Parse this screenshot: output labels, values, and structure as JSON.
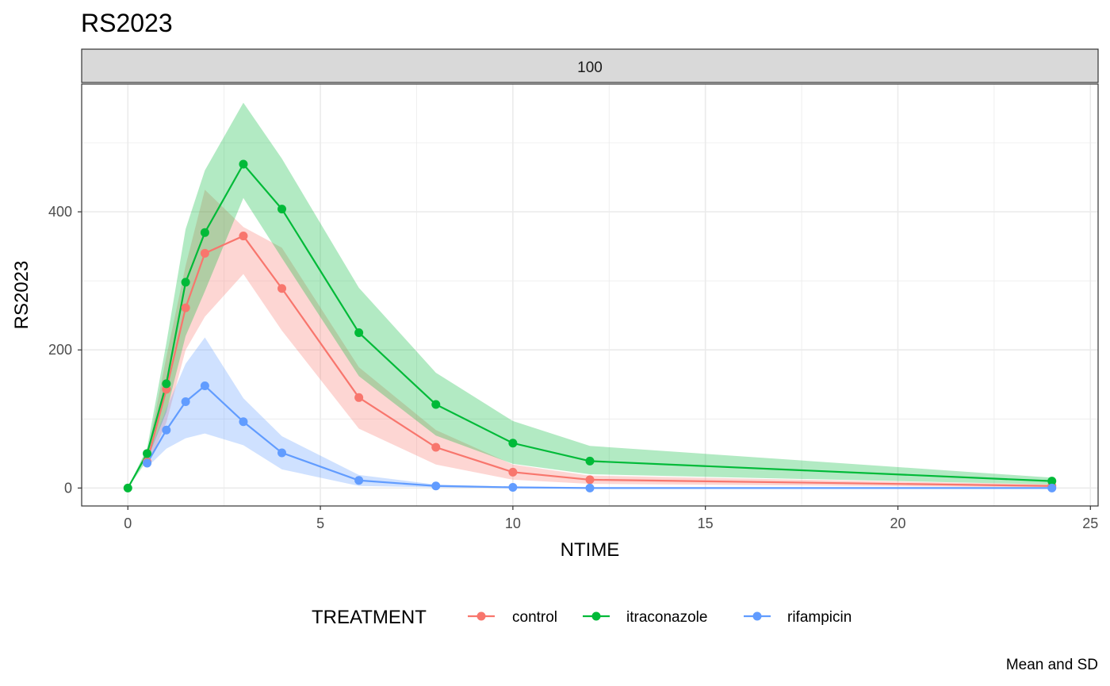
{
  "chart_data": {
    "type": "line",
    "title": "RS2023",
    "facet_label": "100",
    "xlabel": "NTIME",
    "ylabel": "RS2023",
    "caption": "Mean and SD",
    "legend_title": "TREATMENT",
    "legend_position": "bottom",
    "grid": true,
    "xlim": [
      -1.2,
      25.2
    ],
    "ylim": [
      -26,
      585
    ],
    "x_ticks": [
      0,
      5,
      10,
      15,
      20,
      25
    ],
    "x_tick_labels": [
      "0",
      "5",
      "10",
      "15",
      "20",
      "25"
    ],
    "y_ticks": [
      0,
      200,
      400
    ],
    "y_tick_labels": [
      "0",
      "200",
      "400"
    ],
    "series": [
      {
        "name": "control",
        "color": "#F8766D",
        "x": [
          0.5,
          1,
          1.5,
          2,
          3,
          4,
          6,
          8,
          10,
          12,
          24
        ],
        "y": [
          38,
          143,
          261,
          340,
          365,
          289,
          131,
          59,
          23,
          12,
          3
        ],
        "lower": [
          30,
          95,
          200,
          248,
          310,
          228,
          86,
          34,
          12,
          6,
          1
        ],
        "upper": [
          48,
          190,
          322,
          432,
          378,
          348,
          175,
          84,
          34,
          18,
          5
        ]
      },
      {
        "name": "itraconazole",
        "color": "#00BA38",
        "x": [
          0,
          0.5,
          1,
          1.5,
          2,
          3,
          4,
          6,
          8,
          10,
          12,
          24
        ],
        "y": [
          0,
          50,
          151,
          298,
          370,
          469,
          404,
          225,
          121,
          65,
          39,
          10
        ],
        "lower": [
          0,
          40,
          110,
          220,
          285,
          420,
          333,
          162,
          76,
          35,
          20,
          5
        ],
        "upper": [
          0,
          58,
          210,
          375,
          460,
          558,
          477,
          290,
          167,
          97,
          61,
          15
        ]
      },
      {
        "name": "rifampicin",
        "color": "#619CFF",
        "x": [
          0.5,
          1,
          1.5,
          2,
          3,
          4,
          6,
          8,
          10,
          12,
          24
        ],
        "y": [
          36,
          84,
          125,
          148,
          96,
          51,
          11,
          3,
          1,
          0,
          0
        ],
        "lower": [
          30,
          57,
          72,
          79,
          62,
          27,
          3,
          1,
          0,
          0,
          0
        ],
        "upper": [
          43,
          115,
          180,
          218,
          130,
          75,
          19,
          5,
          2,
          1,
          0
        ]
      }
    ]
  }
}
